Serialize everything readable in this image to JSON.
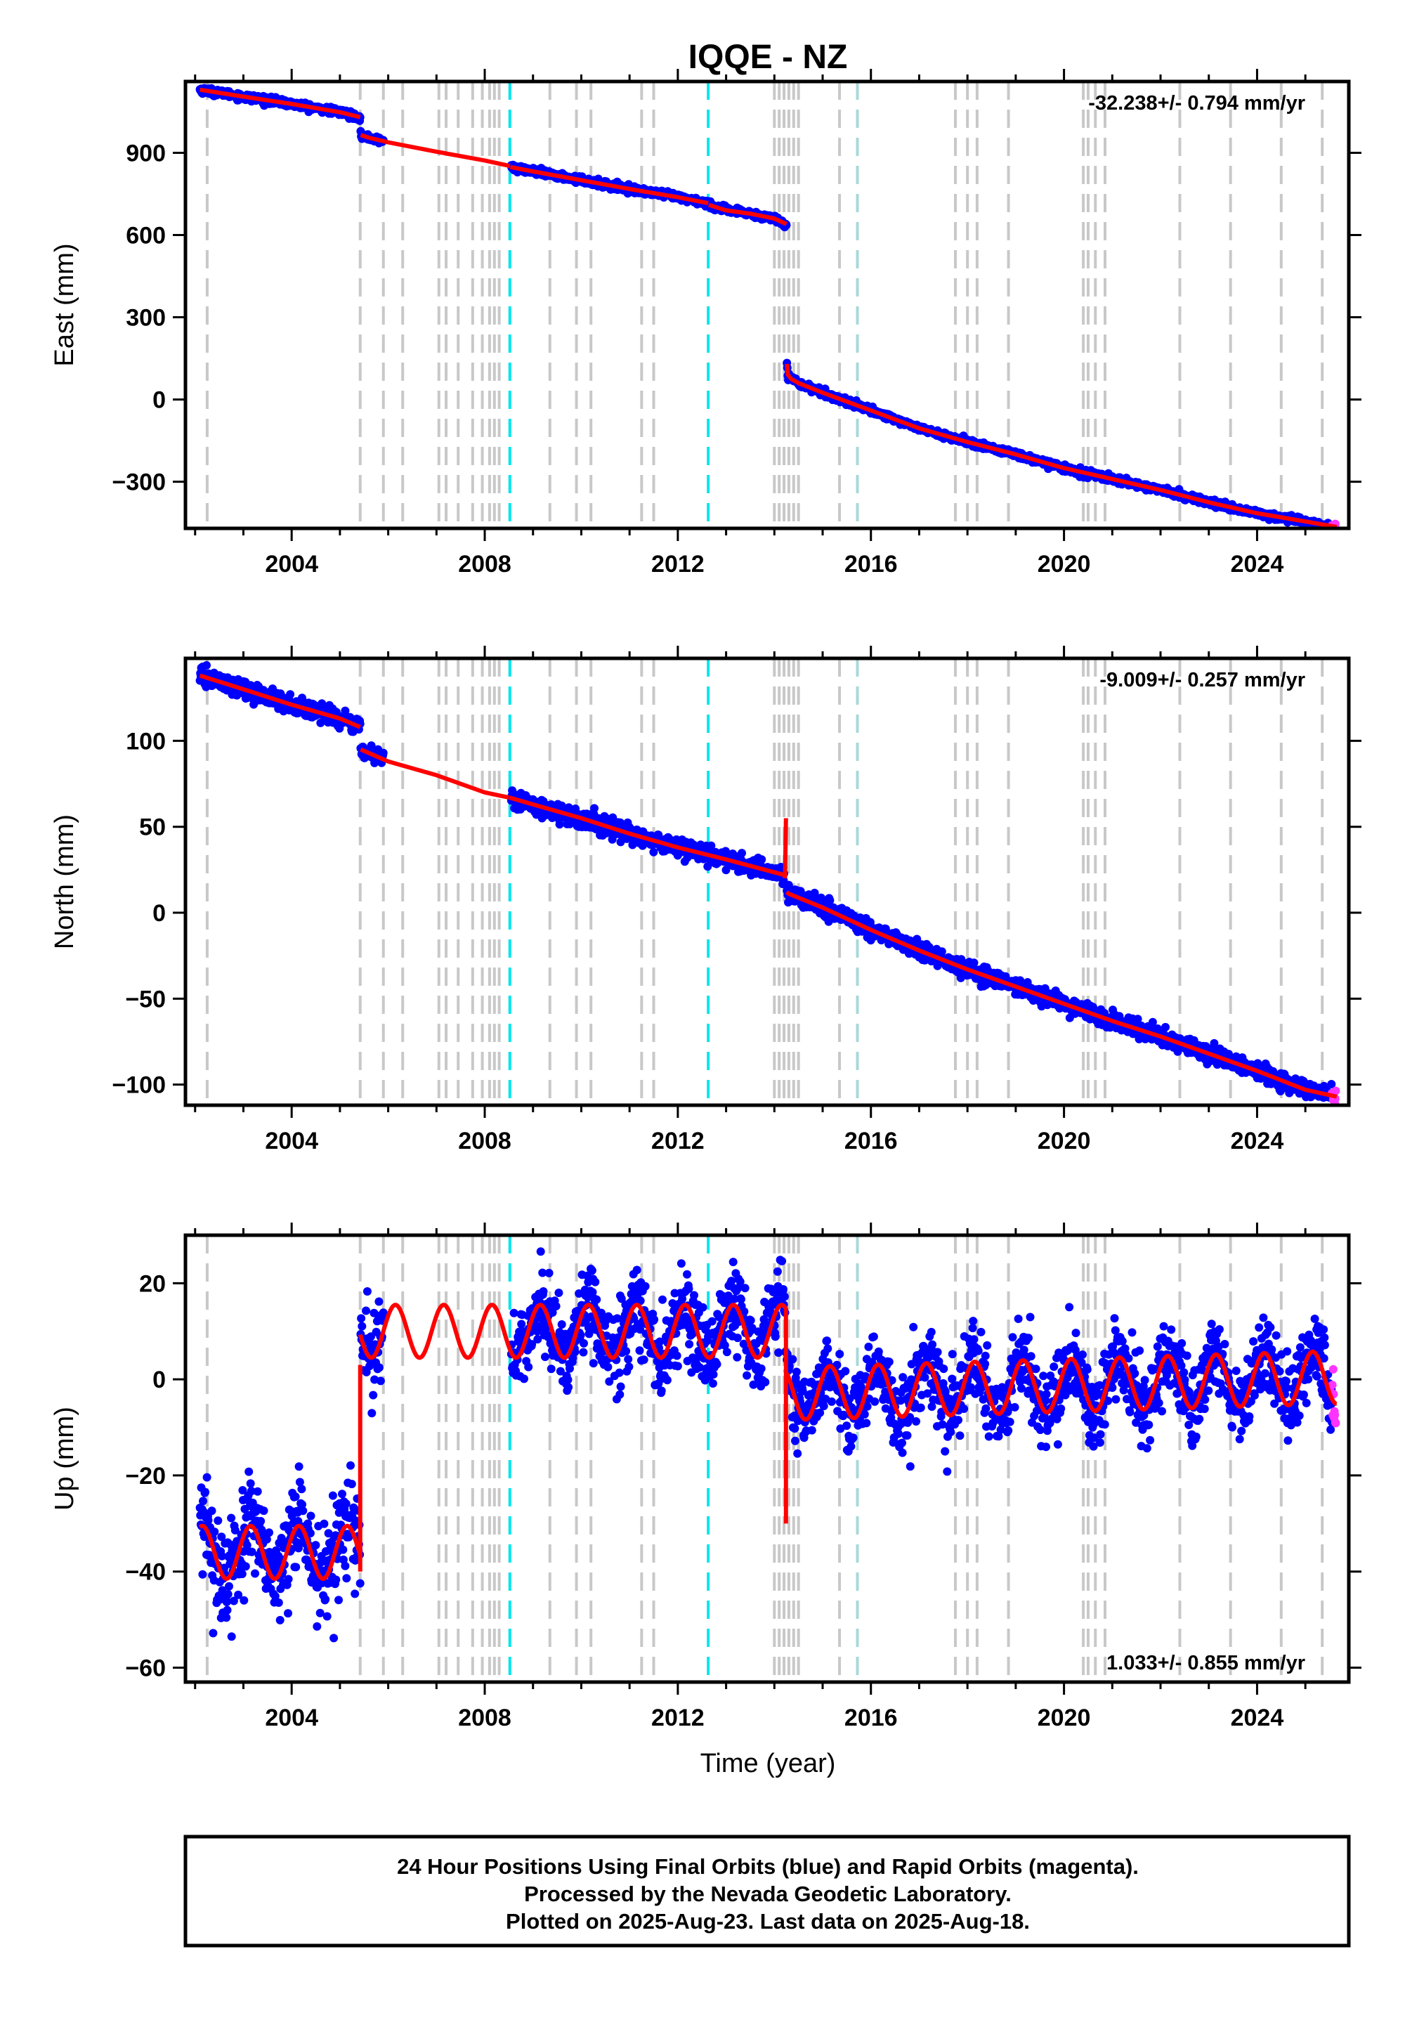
{
  "title": "IQQE - NZ",
  "xlabel": "Time (year)",
  "footer": {
    "line1": "24 Hour Positions Using Final Orbits (blue) and Rapid Orbits (magenta).",
    "line2": "Processed by the Nevada Geodetic Laboratory.",
    "line3": "Plotted on 2025-Aug-23. Last data on 2025-Aug-18."
  },
  "colors": {
    "final_orbits": "#0000ff",
    "rapid_orbits": "#ff33ff",
    "model_fit": "#ff0000",
    "equipment_change": "#c8c8c8",
    "earthquake": "#00e5ee",
    "other_event": "#a8d8d8"
  },
  "event_lines": {
    "equipment_change": [
      2002.25,
      2005.42,
      2005.9,
      2006.3,
      2007.05,
      2007.2,
      2007.45,
      2007.75,
      2007.95,
      2008.1,
      2008.2,
      2008.3,
      2009.35,
      2009.9,
      2010.2,
      2011.25,
      2011.5,
      2014.0,
      2014.1,
      2014.2,
      2014.3,
      2014.4,
      2014.5,
      2015.35,
      2017.75,
      2018.0,
      2018.2,
      2018.85,
      2020.4,
      2020.5,
      2020.65,
      2020.85,
      2022.4,
      2023.45,
      2024.5,
      2025.35
    ],
    "earthquake": [
      2008.52,
      2012.63
    ],
    "other_event": [
      2015.72
    ]
  },
  "chart_data": [
    {
      "type": "scatter",
      "ylabel": "East (mm)",
      "rate_label": "-32.238+/- 0.794 mm/yr",
      "xlim": [
        2001.8,
        2025.9
      ],
      "ylim": [
        -470,
        1160
      ],
      "x_ticks": [
        2004,
        2008,
        2012,
        2016,
        2020,
        2024
      ],
      "y_ticks": [
        -300,
        0,
        300,
        600,
        900
      ],
      "model_series": [
        {
          "name": "",
          "x": [
            2002.1,
            2003.0,
            2004.0,
            2005.0,
            2005.42
          ],
          "y": [
            1130,
            1105,
            1078,
            1048,
            1030
          ]
        },
        {
          "name": "",
          "x": [
            2005.43,
            2005.6,
            2006.0,
            2007.0,
            2008.0,
            2008.52
          ],
          "y": [
            965,
            955,
            938,
            904,
            872,
            852
          ]
        },
        {
          "name": "",
          "x": [
            2008.53,
            2009.0,
            2010.0,
            2011.0,
            2012.0,
            2012.63
          ],
          "y": [
            848,
            832,
            800,
            768,
            738,
            716
          ]
        },
        {
          "name": "",
          "x": [
            2012.64,
            2013.0,
            2013.5,
            2014.0,
            2014.25
          ],
          "y": [
            710,
            690,
            678,
            660,
            640
          ]
        },
        {
          "name": "",
          "x": [
            2014.26,
            2014.28,
            2014.35,
            2014.5,
            2015.0,
            2016.0,
            2017.0,
            2018.0,
            2019.0,
            2020.0,
            2021.0,
            2022.0,
            2023.0,
            2024.0,
            2025.0,
            2025.65
          ],
          "y": [
            130,
            90,
            75,
            60,
            25,
            -40,
            -105,
            -155,
            -200,
            -250,
            -290,
            -330,
            -375,
            -415,
            -445,
            -465
          ]
        }
      ],
      "data_segments": [
        {
          "x_start": 2002.1,
          "x_end": 2005.42,
          "noise": 6
        },
        {
          "x_start": 2005.43,
          "x_end": 2005.9,
          "noise": 6
        },
        {
          "x_start": 2008.55,
          "x_end": 2014.25,
          "noise": 6
        },
        {
          "x_start": 2014.26,
          "x_end": 2025.55,
          "noise": 6
        }
      ],
      "rapid_segment": {
        "x_start": 2025.55,
        "x_end": 2025.63,
        "noise": 5
      }
    },
    {
      "type": "scatter",
      "ylabel": "North (mm)",
      "rate_label": "-9.009+/- 0.257 mm/yr",
      "xlim": [
        2001.8,
        2025.9
      ],
      "ylim": [
        -112,
        148
      ],
      "x_ticks": [
        2004,
        2008,
        2012,
        2016,
        2020,
        2024
      ],
      "y_ticks": [
        -100,
        -50,
        0,
        50,
        100
      ],
      "model_series": [
        {
          "name": "",
          "x": [
            2002.1,
            2003.0,
            2004.0,
            2005.0,
            2005.42
          ],
          "y": [
            138,
            130,
            121,
            113,
            108
          ]
        },
        {
          "name": "",
          "x": [
            2005.43,
            2006.0,
            2007.0,
            2008.0,
            2008.5
          ],
          "y": [
            95,
            88,
            80,
            70,
            67
          ]
        },
        {
          "name": "",
          "x": [
            2008.51,
            2009.0,
            2010.0,
            2011.0,
            2012.0,
            2013.0,
            2014.2
          ],
          "y": [
            67,
            63,
            55,
            46,
            38,
            31,
            22
          ]
        },
        {
          "name": "",
          "x": [
            2014.22,
            2014.24
          ],
          "y": [
            20,
            55
          ]
        },
        {
          "name": "",
          "x": [
            2014.25,
            2014.3,
            2015.0,
            2016.0,
            2017.0,
            2018.0,
            2019.0,
            2020.0,
            2021.0,
            2022.0,
            2023.0,
            2024.0,
            2025.0,
            2025.65
          ],
          "y": [
            12,
            11,
            3,
            -10,
            -22,
            -33,
            -43,
            -53,
            -63,
            -72,
            -82,
            -92,
            -103,
            -107
          ]
        }
      ],
      "data_segments": [
        {
          "x_start": 2002.1,
          "x_end": 2005.42,
          "noise": 2.5
        },
        {
          "x_start": 2005.43,
          "x_end": 2005.9,
          "noise": 2.5
        },
        {
          "x_start": 2008.55,
          "x_end": 2014.2,
          "noise": 2.5
        },
        {
          "x_start": 2014.26,
          "x_end": 2025.55,
          "noise": 2.5
        }
      ],
      "rapid_segment": {
        "x_start": 2025.55,
        "x_end": 2025.63,
        "noise": 2
      }
    },
    {
      "type": "scatter",
      "ylabel": "Up (mm)",
      "rate_label": "1.033+/- 0.855 mm/yr",
      "xlim": [
        2001.8,
        2025.9
      ],
      "ylim": [
        -63,
        30
      ],
      "x_ticks": [
        2004,
        2008,
        2012,
        2016,
        2020,
        2024
      ],
      "y_ticks": [
        -60,
        -40,
        -20,
        0,
        20
      ],
      "model_segments": [
        {
          "x_start": 2002.1,
          "x_end": 2005.42,
          "mean": -36,
          "amplitude": 5.5,
          "phase": 0.1
        },
        {
          "x_start": 2005.42,
          "x_end": 2014.23,
          "mean": 10,
          "amplitude": 5.5,
          "phase": 0.1
        },
        {
          "x_start": 2014.26,
          "x_end": 2025.65,
          "mean": -3,
          "amplitude": 5.5,
          "phase": 0.1,
          "trend": 0.3
        }
      ],
      "model_spikes": [
        {
          "x": 2005.42,
          "y1": -40,
          "y2": 3
        },
        {
          "x": 2014.24,
          "y1": 15,
          "y2": -30
        }
      ],
      "data_segments": [
        {
          "x_start": 2002.1,
          "x_end": 2005.42,
          "noise": 5
        },
        {
          "x_start": 2005.43,
          "x_end": 2005.9,
          "noise": 4.5
        },
        {
          "x_start": 2008.55,
          "x_end": 2014.23,
          "noise": 4.5
        },
        {
          "x_start": 2014.26,
          "x_end": 2025.55,
          "noise": 4
        }
      ],
      "rapid_segment": {
        "x_start": 2025.55,
        "x_end": 2025.63,
        "noise": 4
      }
    }
  ]
}
